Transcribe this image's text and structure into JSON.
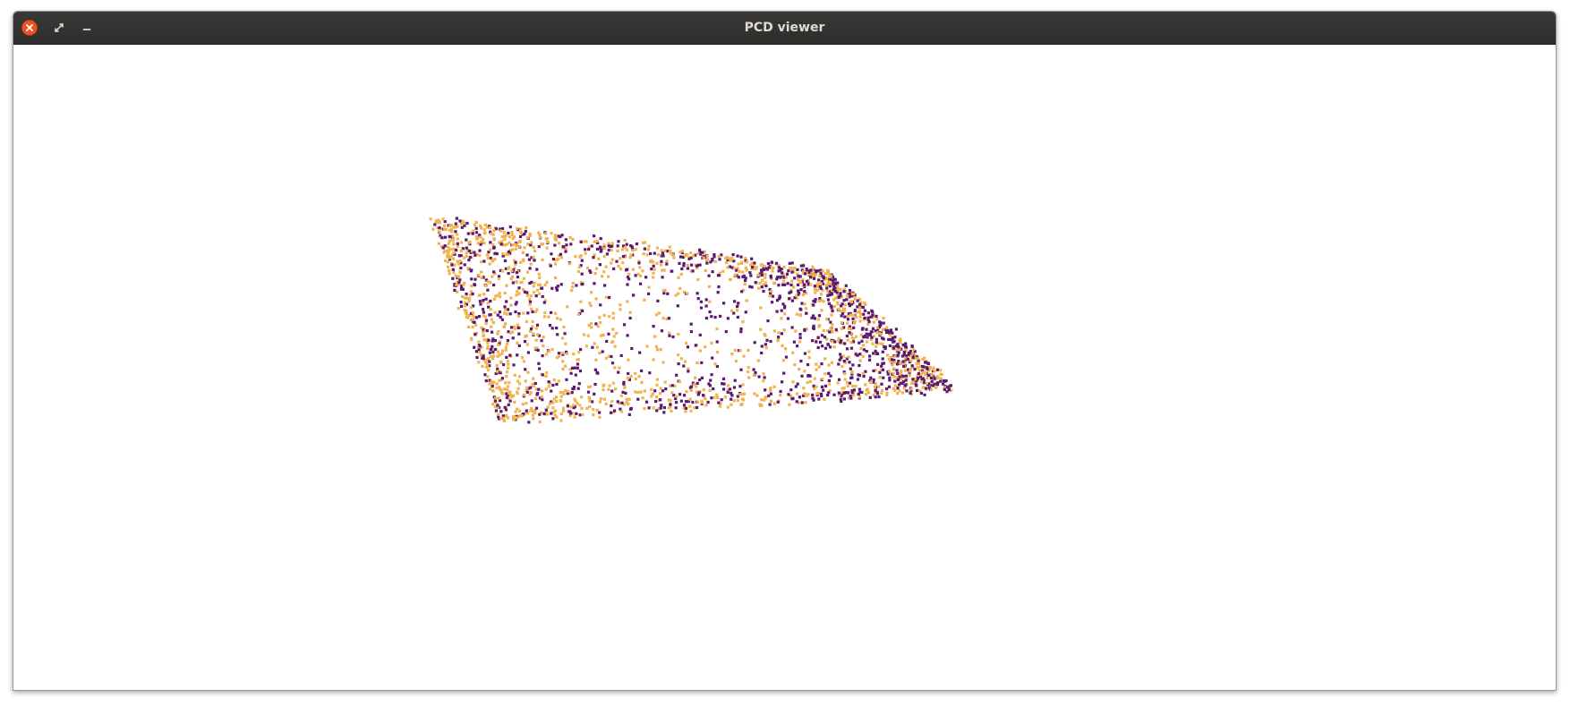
{
  "window": {
    "title": "PCD viewer",
    "buttons": {
      "close_icon": "close-icon",
      "maximize_icon": "maximize-icon",
      "minimize_icon": "minimize-icon"
    },
    "close_color": "#e95420"
  },
  "viewer": {
    "background": "#ffffff",
    "clouds": [
      {
        "color": "#f2b24f"
      },
      {
        "color": "#5b1a72"
      }
    ]
  }
}
